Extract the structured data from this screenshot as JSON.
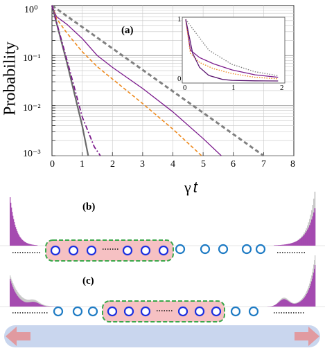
{
  "panel_a": {
    "tag": "(a)",
    "ylabel": "Probability",
    "xlabel_greek": "γ",
    "xlabel_var": "t",
    "y_tick_labels": [
      "10⁰",
      "10⁻¹",
      "10⁻²",
      "10⁻³"
    ],
    "x_tick_labels": [
      "0",
      "1",
      "2",
      "3",
      "4",
      "5",
      "6",
      "7",
      "8"
    ],
    "inset_y_ticks": [
      "1",
      "0"
    ],
    "inset_x_ticks": [
      "0",
      "1",
      "2"
    ]
  },
  "panel_b": {
    "tag": "(b)"
  },
  "panel_c": {
    "tag": "(c)"
  },
  "colors": {
    "purple": "#7b1a8c",
    "orange": "#ee8a1e",
    "gray": "#808080",
    "dark_gray": "#6b6b6b",
    "chain_box_fill": "#f6c1c3",
    "chain_box_border": "#3aa84a",
    "ring": "#1e7bc4",
    "ring_inner": "#1a2fe0",
    "bar_purple": "#a54bb0",
    "bar_gray": "#c9c9c9",
    "arrow_band": "#c9d6ee",
    "arrow": "#e19aa0"
  },
  "chart_data": {
    "type": "line",
    "yscale": "log",
    "xlim": [
      0,
      8
    ],
    "ylim": [
      0.001,
      1
    ],
    "series": [
      {
        "style": "solid-purple",
        "x": [
          0,
          0.15,
          0.5,
          1,
          1.5,
          2,
          3,
          4,
          5,
          5.6
        ],
        "y": [
          1,
          0.6,
          0.42,
          0.22,
          0.1,
          0.058,
          0.022,
          0.0075,
          0.0022,
          0.001
        ]
      },
      {
        "style": "dashed-orange",
        "x": [
          0,
          0.15,
          0.5,
          1,
          1.5,
          2,
          3,
          4,
          4.95
        ],
        "y": [
          1,
          0.55,
          0.28,
          0.12,
          0.06,
          0.034,
          0.011,
          0.0034,
          0.001
        ]
      },
      {
        "style": "dashed-gray",
        "x": [
          0,
          7
        ],
        "y": [
          1,
          0.001
        ]
      },
      {
        "style": "solid-gray",
        "x": [
          0,
          0.5,
          1,
          1.2
        ],
        "y": [
          1,
          0.07,
          0.004,
          0.001
        ]
      },
      {
        "style": "dashdot-purple",
        "x": [
          0,
          0.5,
          1,
          1.4,
          1.6
        ],
        "y": [
          1,
          0.08,
          0.006,
          0.0015,
          0.001
        ]
      }
    ],
    "inset": {
      "type": "line",
      "xlim": [
        0,
        2.1
      ],
      "ylim": [
        0,
        1
      ],
      "series": [
        {
          "style": "dotted-gray",
          "x": [
            0,
            0.5,
            1,
            1.5,
            2
          ],
          "y": [
            1,
            0.5,
            0.27,
            0.15,
            0.085
          ]
        },
        {
          "style": "solid-purple",
          "x": [
            0,
            0.1,
            0.3,
            0.6,
            1,
            1.5,
            2
          ],
          "y": [
            1,
            0.5,
            0.38,
            0.28,
            0.18,
            0.1,
            0.06
          ]
        },
        {
          "style": "dotted-orange",
          "x": [
            0,
            0.1,
            0.3,
            0.6,
            1,
            1.5,
            2
          ],
          "y": [
            1,
            0.45,
            0.3,
            0.2,
            0.12,
            0.06,
            0.035
          ]
        },
        {
          "style": "solid-darkpurple",
          "x": [
            0,
            0.15,
            0.3,
            0.5,
            0.8,
            1,
            1.5,
            2
          ],
          "y": [
            1,
            0.45,
            0.22,
            0.09,
            0.025,
            0.01,
            0.002,
            0
          ]
        }
      ]
    }
  }
}
